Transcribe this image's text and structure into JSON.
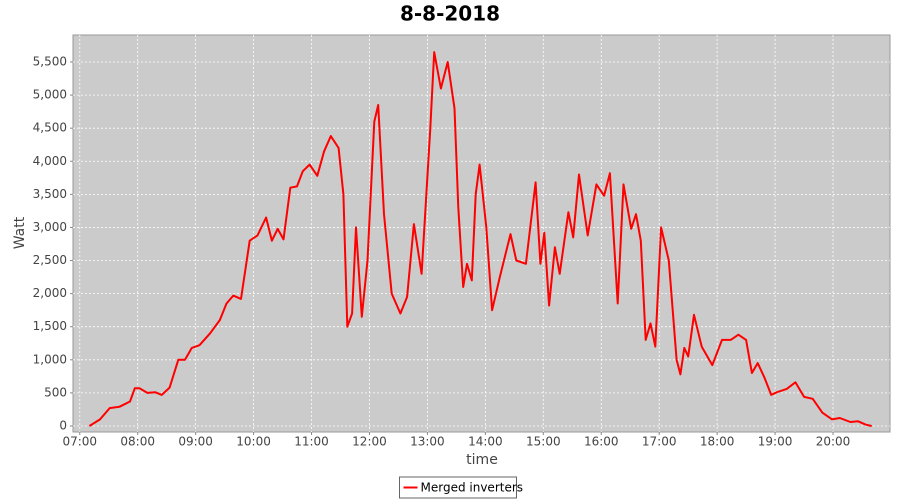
{
  "chart_data": {
    "type": "line",
    "title": "8-8-2018",
    "x_label": "time",
    "y_label": "Watt",
    "x": [
      "07:10",
      "07:21",
      "07:31",
      "07:41",
      "07:52",
      "07:57",
      "08:02",
      "08:10",
      "08:18",
      "08:25",
      "08:33",
      "08:42",
      "08:49",
      "08:56",
      "09:04",
      "09:15",
      "09:25",
      "09:32",
      "09:39",
      "09:47",
      "09:56",
      "10:04",
      "10:13",
      "10:19",
      "10:25",
      "10:31",
      "10:38",
      "10:45",
      "10:51",
      "10:58",
      "11:06",
      "11:13",
      "11:20",
      "11:28",
      "11:33",
      "11:37",
      "11:42",
      "11:46",
      "11:52",
      "11:58",
      "12:05",
      "12:09",
      "12:15",
      "12:23",
      "12:32",
      "12:39",
      "12:46",
      "12:54",
      "13:03",
      "13:07",
      "13:14",
      "13:21",
      "13:28",
      "13:32",
      "13:37",
      "13:41",
      "13:46",
      "13:50",
      "13:54",
      "14:01",
      "14:07",
      "14:15",
      "14:26",
      "14:32",
      "14:42",
      "14:52",
      "14:57",
      "15:01",
      "15:06",
      "15:12",
      "15:17",
      "15:26",
      "15:31",
      "15:37",
      "15:46",
      "15:55",
      "16:03",
      "16:09",
      "16:17",
      "16:23",
      "16:31",
      "16:36",
      "16:41",
      "16:46",
      "16:51",
      "16:56",
      "17:02",
      "17:10",
      "17:18",
      "17:22",
      "17:26",
      "17:30",
      "17:36",
      "17:44",
      "17:55",
      "18:05",
      "18:14",
      "18:22",
      "18:30",
      "18:36",
      "18:42",
      "18:49",
      "18:56",
      "19:02",
      "19:12",
      "19:21",
      "19:30",
      "19:39",
      "19:49",
      "19:59",
      "20:07",
      "20:18",
      "20:26",
      "20:34",
      "20:40"
    ],
    "series": [
      {
        "name": "Merged inverters",
        "color": "#ff0000",
        "values": [
          0,
          100,
          270,
          290,
          370,
          570,
          570,
          500,
          510,
          470,
          580,
          1000,
          1000,
          1180,
          1220,
          1400,
          1600,
          1850,
          1970,
          1920,
          2800,
          2880,
          3150,
          2800,
          2980,
          2820,
          3600,
          3620,
          3850,
          3950,
          3780,
          4150,
          4380,
          4200,
          3500,
          1500,
          1700,
          3000,
          1650,
          2500,
          4600,
          4850,
          3200,
          2000,
          1700,
          1950,
          3050,
          2300,
          4500,
          5650,
          5100,
          5500,
          4800,
          3300,
          2100,
          2450,
          2200,
          3500,
          3950,
          3000,
          1750,
          2250,
          2900,
          2500,
          2450,
          3680,
          2450,
          2920,
          1820,
          2700,
          2300,
          3230,
          2850,
          3800,
          2880,
          3650,
          3480,
          3820,
          1850,
          3650,
          2980,
          3200,
          2800,
          1300,
          1550,
          1200,
          3000,
          2500,
          1000,
          780,
          1180,
          1050,
          1680,
          1200,
          920,
          1300,
          1300,
          1380,
          1300,
          800,
          950,
          730,
          470,
          510,
          560,
          660,
          440,
          410,
          200,
          100,
          120,
          60,
          70,
          20,
          0
        ]
      }
    ],
    "xlim": [
      "06:53",
      "20:59"
    ],
    "xticks": [
      "07:00",
      "08:00",
      "09:00",
      "10:00",
      "11:00",
      "12:00",
      "13:00",
      "14:00",
      "15:00",
      "16:00",
      "17:00",
      "18:00",
      "19:00",
      "20:00"
    ],
    "ylim": [
      -91,
      5908
    ],
    "yticks": [
      0,
      500,
      {
        "value": 1000,
        "label": "1,000"
      },
      {
        "value": 1500,
        "label": "1,500"
      },
      {
        "value": 2000,
        "label": "2,000"
      },
      {
        "value": 2500,
        "label": "2,500"
      },
      {
        "value": 3000,
        "label": "3,000"
      },
      {
        "value": 3500,
        "label": "3,500"
      },
      {
        "value": 4000,
        "label": "4,000"
      },
      {
        "value": 4500,
        "label": "4,500"
      },
      {
        "value": 5000,
        "label": "5,000"
      },
      {
        "value": 5500,
        "label": "5,500"
      }
    ],
    "grid": true,
    "legend": "bottom"
  }
}
